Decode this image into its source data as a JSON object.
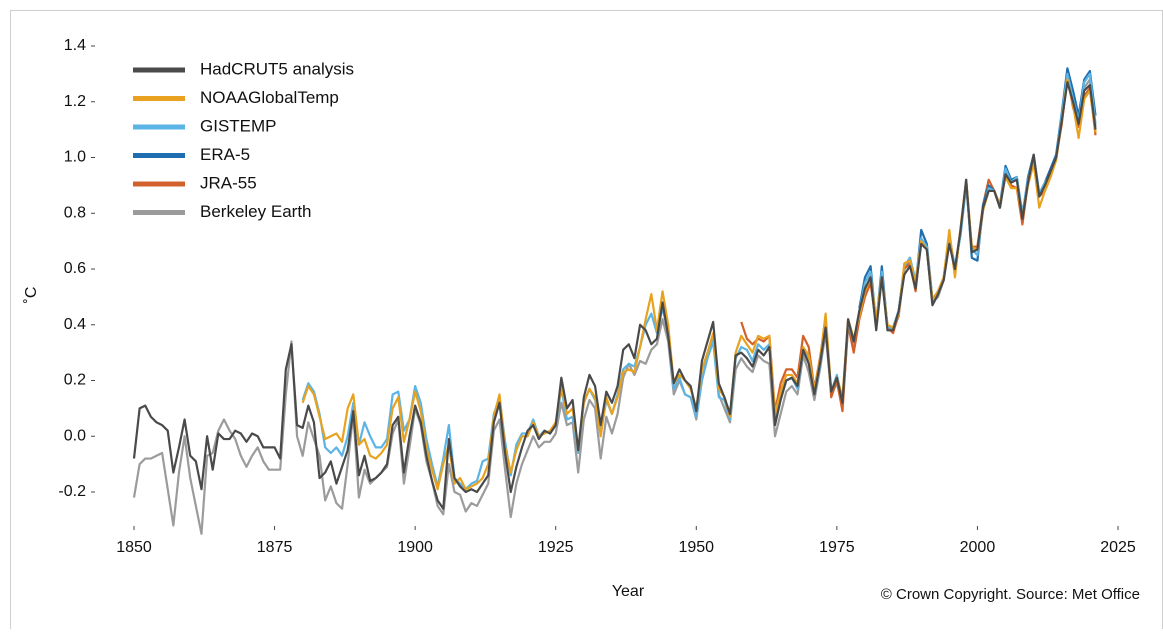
{
  "chart_data": {
    "type": "line",
    "x_label": "Year",
    "y_label": "˚C",
    "source": "© Crown Copyright. Source: Met Office",
    "xlim": [
      1850,
      2025
    ],
    "xticks": [
      1850,
      1875,
      1900,
      1925,
      1950,
      1975,
      2000,
      2025
    ],
    "ylim": [
      -0.2,
      1.4
    ],
    "yticks": [
      -0.2,
      {
        "value": 0,
        "label": "0.0"
      },
      0.2,
      0.4,
      0.6,
      0.8,
      {
        "value": 1,
        "label": "1.0"
      },
      1.2,
      1.4
    ],
    "grid": false,
    "legend": "upper left",
    "x": [
      1850,
      1851,
      1852,
      1853,
      1854,
      1855,
      1856,
      1857,
      1858,
      1859,
      1860,
      1861,
      1862,
      1863,
      1864,
      1865,
      1866,
      1867,
      1868,
      1869,
      1870,
      1871,
      1872,
      1873,
      1874,
      1875,
      1876,
      1877,
      1878,
      1879,
      1880,
      1881,
      1882,
      1883,
      1884,
      1885,
      1886,
      1887,
      1888,
      1889,
      1890,
      1891,
      1892,
      1893,
      1894,
      1895,
      1896,
      1897,
      1898,
      1899,
      1900,
      1901,
      1902,
      1903,
      1904,
      1905,
      1906,
      1907,
      1908,
      1909,
      1910,
      1911,
      1912,
      1913,
      1914,
      1915,
      1916,
      1917,
      1918,
      1919,
      1920,
      1921,
      1922,
      1923,
      1924,
      1925,
      1926,
      1927,
      1928,
      1929,
      1930,
      1931,
      1932,
      1933,
      1934,
      1935,
      1936,
      1937,
      1938,
      1939,
      1940,
      1941,
      1942,
      1943,
      1944,
      1945,
      1946,
      1947,
      1948,
      1949,
      1950,
      1951,
      1952,
      1953,
      1954,
      1955,
      1956,
      1957,
      1958,
      1959,
      1960,
      1961,
      1962,
      1963,
      1964,
      1965,
      1966,
      1967,
      1968,
      1969,
      1970,
      1971,
      1972,
      1973,
      1974,
      1975,
      1976,
      1977,
      1978,
      1979,
      1980,
      1981,
      1982,
      1983,
      1984,
      1985,
      1986,
      1987,
      1988,
      1989,
      1990,
      1991,
      1992,
      1993,
      1994,
      1995,
      1996,
      1997,
      1998,
      1999,
      2000,
      2001,
      2002,
      2003,
      2004,
      2005,
      2006,
      2007,
      2008,
      2009,
      2010,
      2011,
      2012,
      2013,
      2014,
      2015,
      2016,
      2017,
      2018,
      2019,
      2020,
      2021
    ],
    "series": [
      {
        "name": "HadCRUT5 analysis",
        "color": "#4a4a4a",
        "values": [
          -0.08,
          0.1,
          0.11,
          0.07,
          0.05,
          0.04,
          0.02,
          -0.13,
          -0.04,
          0.06,
          -0.07,
          -0.09,
          -0.19,
          0.0,
          -0.12,
          0.01,
          -0.01,
          -0.01,
          0.02,
          0.01,
          -0.02,
          0.01,
          0.0,
          -0.04,
          -0.04,
          -0.04,
          -0.08,
          0.24,
          0.33,
          0.04,
          0.03,
          0.11,
          0.05,
          -0.15,
          -0.13,
          -0.09,
          -0.17,
          -0.11,
          -0.05,
          0.09,
          -0.14,
          -0.07,
          -0.16,
          -0.15,
          -0.13,
          -0.1,
          0.04,
          0.07,
          -0.13,
          0.0,
          0.11,
          0.05,
          -0.07,
          -0.16,
          -0.23,
          -0.26,
          -0.01,
          -0.15,
          -0.18,
          -0.2,
          -0.19,
          -0.2,
          -0.17,
          -0.14,
          0.05,
          0.12,
          -0.06,
          -0.2,
          -0.11,
          -0.04,
          0.02,
          0.04,
          -0.01,
          0.02,
          0.01,
          0.04,
          0.21,
          0.1,
          0.13,
          -0.05,
          0.14,
          0.22,
          0.18,
          0.04,
          0.16,
          0.12,
          0.18,
          0.31,
          0.33,
          0.28,
          0.4,
          0.38,
          0.33,
          0.35,
          0.48,
          0.36,
          0.19,
          0.24,
          0.2,
          0.18,
          0.09,
          0.27,
          0.34,
          0.41,
          0.19,
          0.14,
          0.08,
          0.29,
          0.3,
          0.28,
          0.25,
          0.31,
          0.29,
          0.32,
          0.04,
          0.13,
          0.2,
          0.21,
          0.18,
          0.31,
          0.26,
          0.15,
          0.26,
          0.39,
          0.16,
          0.21,
          0.12,
          0.42,
          0.34,
          0.45,
          0.53,
          0.57,
          0.38,
          0.57,
          0.38,
          0.38,
          0.45,
          0.58,
          0.61,
          0.53,
          0.69,
          0.67,
          0.47,
          0.51,
          0.56,
          0.69,
          0.6,
          0.74,
          0.92,
          0.66,
          0.67,
          0.82,
          0.88,
          0.88,
          0.82,
          0.94,
          0.91,
          0.92,
          0.78,
          0.91,
          1.01,
          0.86,
          0.9,
          0.95,
          1.0,
          1.13,
          1.27,
          1.2,
          1.12,
          1.24,
          1.26,
          1.1
        ]
      },
      {
        "name": "NOAAGlobalTemp",
        "color": "#e8a21f",
        "values": [
          null,
          null,
          null,
          null,
          null,
          null,
          null,
          null,
          null,
          null,
          null,
          null,
          null,
          null,
          null,
          null,
          null,
          null,
          null,
          null,
          null,
          null,
          null,
          null,
          null,
          null,
          null,
          null,
          null,
          null,
          0.12,
          0.18,
          0.15,
          0.07,
          -0.01,
          0.0,
          0.01,
          -0.02,
          0.1,
          0.15,
          -0.03,
          -0.01,
          -0.07,
          -0.08,
          -0.06,
          -0.03,
          0.1,
          0.14,
          -0.02,
          0.06,
          0.16,
          0.09,
          -0.04,
          -0.12,
          -0.19,
          -0.1,
          -0.03,
          -0.17,
          -0.15,
          -0.19,
          -0.18,
          -0.17,
          -0.15,
          -0.1,
          0.07,
          0.15,
          -0.04,
          -0.13,
          -0.05,
          0.0,
          0.0,
          0.05,
          0.0,
          0.01,
          0.02,
          0.05,
          0.18,
          0.08,
          0.1,
          -0.05,
          0.12,
          0.17,
          0.14,
          0.0,
          0.14,
          0.08,
          0.14,
          0.23,
          0.24,
          0.23,
          0.32,
          0.42,
          0.51,
          0.38,
          0.52,
          0.4,
          0.19,
          0.22,
          0.2,
          0.17,
          0.1,
          0.24,
          0.3,
          0.37,
          0.17,
          0.14,
          0.07,
          0.3,
          0.36,
          0.33,
          0.3,
          0.36,
          0.35,
          0.36,
          0.08,
          0.16,
          0.22,
          0.22,
          0.19,
          0.32,
          0.29,
          0.17,
          0.27,
          0.44,
          0.16,
          0.21,
          0.14,
          0.42,
          0.35,
          0.43,
          0.52,
          0.57,
          0.42,
          0.57,
          0.4,
          0.39,
          0.44,
          0.62,
          0.63,
          0.55,
          0.7,
          0.67,
          0.49,
          0.52,
          0.57,
          0.74,
          0.57,
          0.75,
          0.92,
          0.68,
          0.67,
          0.81,
          0.88,
          0.88,
          0.83,
          0.93,
          0.89,
          0.89,
          0.79,
          0.9,
          0.98,
          0.82,
          0.88,
          0.93,
          0.99,
          1.13,
          1.28,
          1.19,
          1.07,
          1.21,
          1.24,
          1.09
        ]
      },
      {
        "name": "GISTEMP",
        "color": "#5ab4e5",
        "values": [
          null,
          null,
          null,
          null,
          null,
          null,
          null,
          null,
          null,
          null,
          null,
          null,
          null,
          null,
          null,
          null,
          null,
          null,
          null,
          null,
          null,
          null,
          null,
          null,
          null,
          null,
          null,
          null,
          null,
          null,
          0.13,
          0.19,
          0.16,
          0.08,
          -0.04,
          -0.06,
          -0.04,
          -0.07,
          0.0,
          0.12,
          -0.03,
          0.05,
          0.0,
          -0.04,
          -0.04,
          -0.01,
          0.15,
          0.16,
          0.02,
          0.06,
          0.18,
          0.12,
          -0.01,
          -0.1,
          -0.18,
          -0.08,
          0.04,
          -0.15,
          -0.17,
          -0.19,
          -0.17,
          -0.16,
          -0.09,
          -0.08,
          0.08,
          0.14,
          -0.02,
          -0.14,
          -0.03,
          0.01,
          0.01,
          0.06,
          0.0,
          0.02,
          0.01,
          0.04,
          0.17,
          0.06,
          0.07,
          -0.06,
          0.12,
          0.17,
          0.13,
          0.01,
          0.13,
          0.08,
          0.15,
          0.24,
          0.26,
          0.25,
          0.32,
          0.4,
          0.44,
          0.37,
          0.46,
          0.37,
          0.17,
          0.21,
          0.15,
          0.14,
          0.07,
          0.2,
          0.28,
          0.34,
          0.14,
          0.13,
          0.06,
          0.28,
          0.32,
          0.31,
          0.27,
          0.33,
          0.31,
          0.33,
          0.05,
          0.14,
          0.2,
          0.21,
          0.17,
          0.31,
          0.28,
          0.15,
          0.25,
          0.41,
          0.16,
          0.22,
          0.13,
          0.41,
          0.34,
          0.45,
          0.55,
          0.59,
          0.4,
          0.59,
          0.39,
          0.39,
          0.45,
          0.61,
          0.64,
          0.56,
          0.71,
          0.68,
          0.49,
          0.51,
          0.57,
          0.71,
          0.61,
          0.72,
          0.9,
          0.67,
          0.65,
          0.81,
          0.89,
          0.88,
          0.82,
          0.96,
          0.91,
          0.93,
          0.8,
          0.92,
          1.0,
          0.87,
          0.91,
          0.94,
          1.0,
          1.15,
          1.3,
          1.21,
          1.13,
          1.27,
          1.3,
          1.12
        ]
      },
      {
        "name": "ERA-5",
        "color": "#1f6fb0",
        "values": [
          null,
          null,
          null,
          null,
          null,
          null,
          null,
          null,
          null,
          null,
          null,
          null,
          null,
          null,
          null,
          null,
          null,
          null,
          null,
          null,
          null,
          null,
          null,
          null,
          null,
          null,
          null,
          null,
          null,
          null,
          null,
          null,
          null,
          null,
          null,
          null,
          null,
          null,
          null,
          null,
          null,
          null,
          null,
          null,
          null,
          null,
          null,
          null,
          null,
          null,
          null,
          null,
          null,
          null,
          null,
          null,
          null,
          null,
          null,
          null,
          null,
          null,
          null,
          null,
          null,
          null,
          null,
          null,
          null,
          null,
          null,
          null,
          null,
          null,
          null,
          null,
          null,
          null,
          null,
          null,
          null,
          null,
          null,
          null,
          null,
          null,
          null,
          null,
          null,
          null,
          null,
          null,
          null,
          null,
          null,
          null,
          null,
          null,
          null,
          null,
          null,
          null,
          null,
          null,
          null,
          null,
          null,
          null,
          null,
          null,
          null,
          null,
          null,
          null,
          null,
          null,
          null,
          null,
          null,
          null,
          null,
          null,
          null,
          null,
          null,
          null,
          null,
          null,
          null,
          0.46,
          0.57,
          0.61,
          0.4,
          0.61,
          0.39,
          0.39,
          0.45,
          0.61,
          0.64,
          0.54,
          0.74,
          0.69,
          0.49,
          0.52,
          0.57,
          0.72,
          0.6,
          0.73,
          0.92,
          0.64,
          0.63,
          0.83,
          0.9,
          0.88,
          0.83,
          0.97,
          0.92,
          0.93,
          0.79,
          0.93,
          1.01,
          0.87,
          0.91,
          0.96,
          1.01,
          1.16,
          1.32,
          1.24,
          1.15,
          1.28,
          1.31,
          1.15
        ]
      },
      {
        "name": "JRA-55",
        "color": "#d2602a",
        "values": [
          null,
          null,
          null,
          null,
          null,
          null,
          null,
          null,
          null,
          null,
          null,
          null,
          null,
          null,
          null,
          null,
          null,
          null,
          null,
          null,
          null,
          null,
          null,
          null,
          null,
          null,
          null,
          null,
          null,
          null,
          null,
          null,
          null,
          null,
          null,
          null,
          null,
          null,
          null,
          null,
          null,
          null,
          null,
          null,
          null,
          null,
          null,
          null,
          null,
          null,
          null,
          null,
          null,
          null,
          null,
          null,
          null,
          null,
          null,
          null,
          null,
          null,
          null,
          null,
          null,
          null,
          null,
          null,
          null,
          null,
          null,
          null,
          null,
          null,
          null,
          null,
          null,
          null,
          null,
          null,
          null,
          null,
          null,
          null,
          null,
          null,
          null,
          null,
          null,
          null,
          null,
          null,
          null,
          null,
          null,
          null,
          null,
          null,
          null,
          null,
          null,
          null,
          null,
          null,
          null,
          null,
          null,
          null,
          0.41,
          0.35,
          0.33,
          0.35,
          0.34,
          0.36,
          0.09,
          0.19,
          0.24,
          0.24,
          0.21,
          0.36,
          0.32,
          0.17,
          0.28,
          0.42,
          0.14,
          0.2,
          0.09,
          0.4,
          0.3,
          0.42,
          0.5,
          0.55,
          0.4,
          0.58,
          0.39,
          0.37,
          0.44,
          0.6,
          0.62,
          0.52,
          0.71,
          0.67,
          0.48,
          0.52,
          0.56,
          0.72,
          0.58,
          0.74,
          0.91,
          0.68,
          0.68,
          0.83,
          0.92,
          0.88,
          0.82,
          0.94,
          0.9,
          0.89,
          0.76,
          0.91,
          0.98,
          0.86,
          0.88,
          0.93,
          1.0,
          1.12,
          1.29,
          1.18,
          1.11,
          1.22,
          1.25,
          1.08
        ]
      },
      {
        "name": "Berkeley Earth",
        "color": "#9b9b9b",
        "values": [
          -0.22,
          -0.1,
          -0.08,
          -0.08,
          -0.07,
          -0.06,
          -0.19,
          -0.32,
          -0.13,
          0.0,
          -0.15,
          -0.25,
          -0.35,
          -0.07,
          -0.06,
          0.02,
          0.06,
          0.02,
          -0.01,
          -0.07,
          -0.11,
          -0.07,
          -0.04,
          -0.09,
          -0.12,
          -0.12,
          -0.12,
          0.15,
          0.34,
          0.0,
          -0.07,
          0.05,
          -0.01,
          -0.07,
          -0.23,
          -0.18,
          -0.24,
          -0.26,
          -0.1,
          0.08,
          -0.22,
          -0.12,
          -0.17,
          -0.15,
          -0.13,
          -0.11,
          0.01,
          0.06,
          -0.17,
          -0.04,
          0.1,
          0.04,
          -0.09,
          -0.16,
          -0.25,
          -0.28,
          -0.1,
          -0.2,
          -0.21,
          -0.27,
          -0.24,
          -0.25,
          -0.21,
          -0.17,
          0.02,
          0.06,
          -0.12,
          -0.29,
          -0.17,
          -0.1,
          -0.05,
          0.0,
          -0.04,
          -0.02,
          -0.02,
          0.01,
          0.12,
          0.04,
          0.05,
          -0.13,
          0.06,
          0.13,
          0.1,
          -0.08,
          0.07,
          0.01,
          0.08,
          0.21,
          0.26,
          0.22,
          0.27,
          0.26,
          0.31,
          0.33,
          0.42,
          0.34,
          0.15,
          0.2,
          0.15,
          0.14,
          0.06,
          0.2,
          0.29,
          0.36,
          0.15,
          0.1,
          0.05,
          0.24,
          0.28,
          0.25,
          0.23,
          0.29,
          0.27,
          0.26,
          0.0,
          0.08,
          0.16,
          0.18,
          0.15,
          0.29,
          0.23,
          0.13,
          0.24,
          0.37,
          0.15,
          0.19,
          0.11,
          0.39,
          0.32,
          0.44,
          0.51,
          0.58,
          0.4,
          0.58,
          0.4,
          0.38,
          0.43,
          0.6,
          0.63,
          0.53,
          0.7,
          0.67,
          0.48,
          0.5,
          0.56,
          0.72,
          0.6,
          0.74,
          0.9,
          0.67,
          0.68,
          0.82,
          0.89,
          0.88,
          0.82,
          0.95,
          0.91,
          0.93,
          0.79,
          0.91,
          1.0,
          0.86,
          0.9,
          0.95,
          1.01,
          1.15,
          1.28,
          1.21,
          1.12,
          1.25,
          1.28,
          1.11
        ]
      }
    ]
  }
}
